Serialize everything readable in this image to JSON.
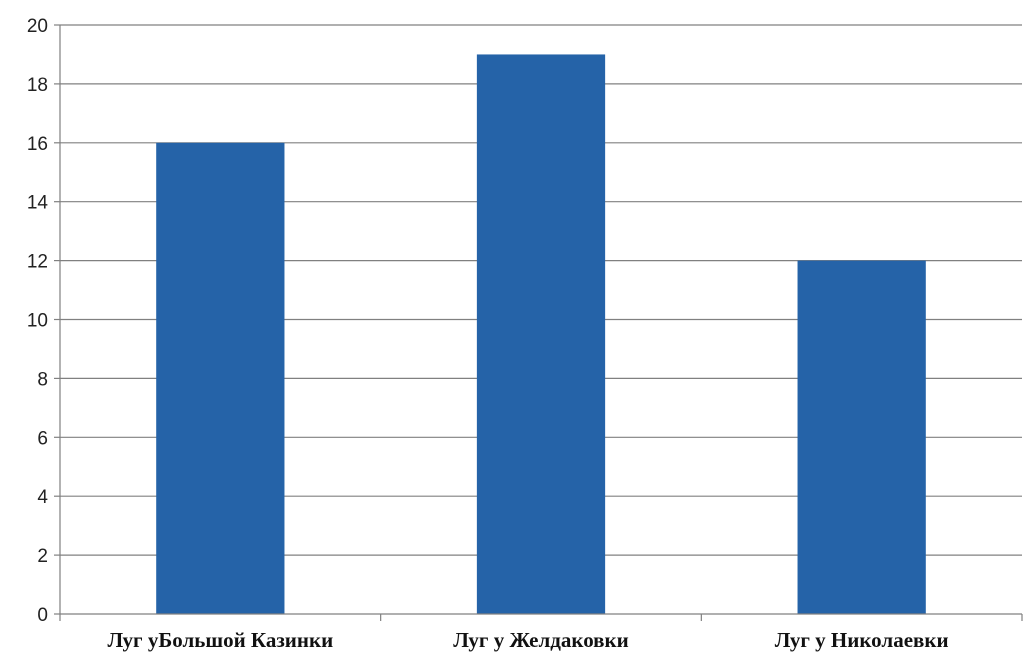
{
  "chart_data": {
    "type": "bar",
    "categories": [
      "Луг уБольшой Казинки",
      "Луг у Желдаковки",
      "Луг у Николаевки"
    ],
    "values": [
      16,
      19,
      12
    ],
    "ylim": [
      0,
      20
    ],
    "yticks": [
      0,
      2,
      4,
      6,
      8,
      10,
      12,
      14,
      16,
      18,
      20
    ],
    "grid": true,
    "legend": "none",
    "colors": {
      "bar": "#2563a8",
      "grid": "#808080"
    }
  }
}
